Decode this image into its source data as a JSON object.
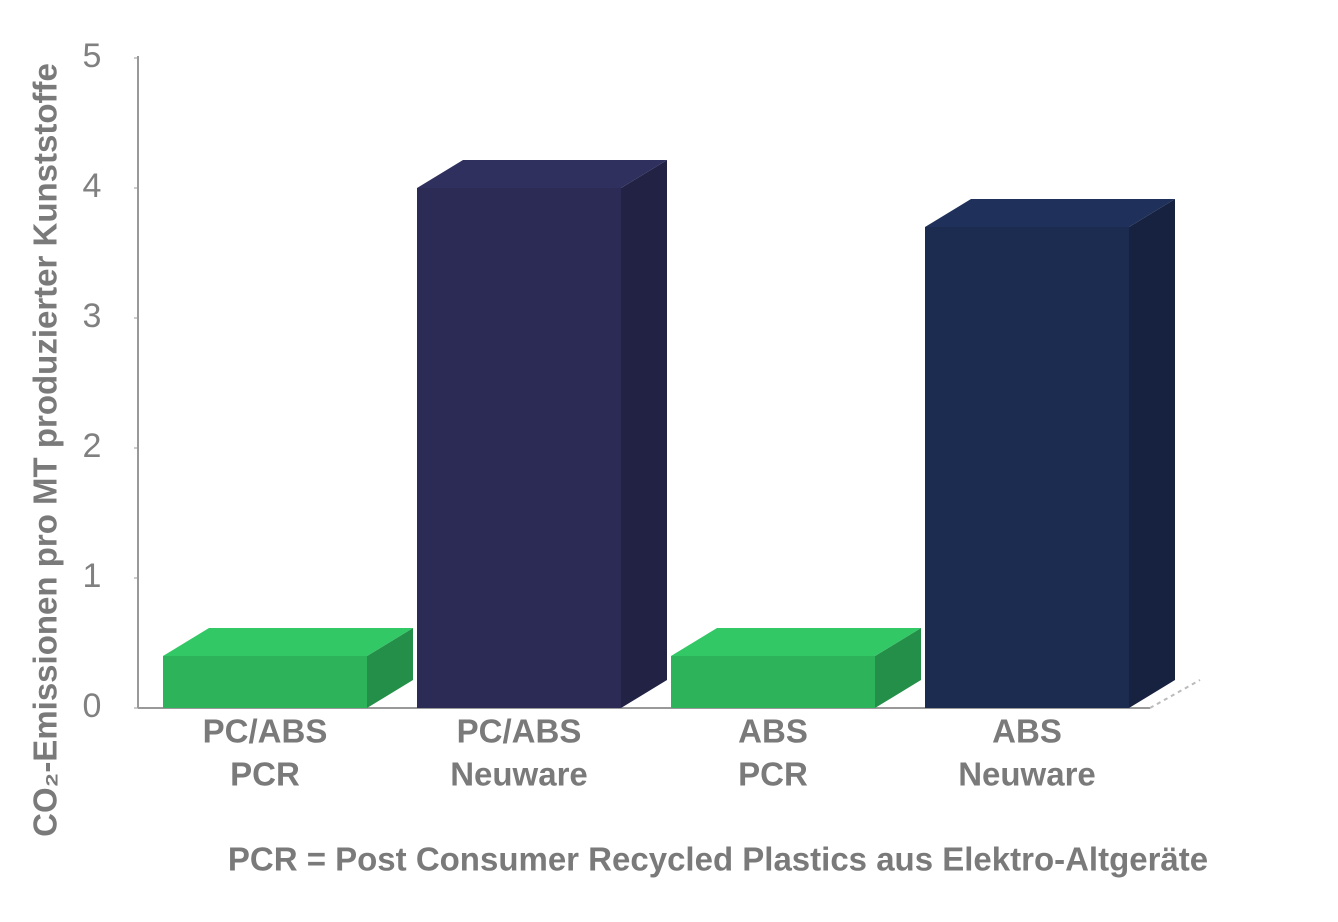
{
  "chart_data": {
    "type": "bar3d",
    "ylabel": "CO₂-Emissionen pro MT produzierter Kunststoffe",
    "categories": [
      [
        "PC/ABS",
        "PCR"
      ],
      [
        "PC/ABS",
        "Neuware"
      ],
      [
        "ABS",
        "PCR"
      ],
      [
        "ABS",
        "Neuware"
      ]
    ],
    "values": [
      0.4,
      4.0,
      0.4,
      3.7
    ],
    "colors": [
      "#2db35a",
      "#2b2b55",
      "#2db35a",
      "#1c2b50"
    ],
    "ylim": [
      0,
      5
    ],
    "yticks": [
      0,
      1,
      2,
      3,
      4,
      5
    ],
    "note": "PCR = Post Consumer Recycled Plastics aus Elektro-Altgeräte"
  }
}
